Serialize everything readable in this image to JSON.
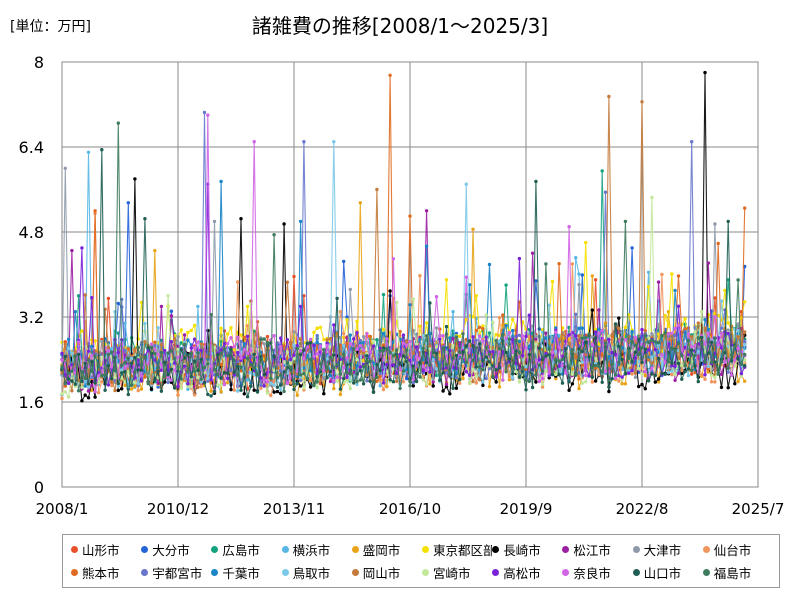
{
  "chart_data": {
    "type": "line",
    "title": "諸雑費の推移[2008/1～2025/3]",
    "unit_label": "[単位：万円]",
    "xlabel": "",
    "ylabel": "",
    "x_range": [
      "2008/1",
      "2025/3"
    ],
    "x_ticks": [
      "2008/1",
      "2010/12",
      "2013/11",
      "2016/10",
      "2019/9",
      "2022/8",
      "2025/7"
    ],
    "y_ticks": [
      "0",
      "1.6",
      "3.2",
      "4.8",
      "6.4",
      "8"
    ],
    "ylim": [
      0,
      8
    ],
    "grid": true,
    "legend_position": "bottom",
    "series": [
      {
        "name": "山形市",
        "color": "#e8502a",
        "base": 2.25,
        "peaks": [
          [
            "2009/3",
            3.55
          ],
          [
            "2014/2",
            3.6
          ],
          [
            "2021/6",
            3.9
          ],
          [
            "2025/2",
            3.3
          ]
        ]
      },
      {
        "name": "大分市",
        "color": "#2563d9",
        "base": 2.3,
        "peaks": [
          [
            "2009/9",
            5.35
          ],
          [
            "2016/4",
            3.6
          ],
          [
            "2022/5",
            4.5
          ],
          [
            "2025/3",
            4.15
          ]
        ]
      },
      {
        "name": "広島市",
        "color": "#14a37f",
        "base": 2.35,
        "peaks": [
          [
            "2008/6",
            3.6
          ],
          [
            "2019/3",
            3.8
          ],
          [
            "2021/8",
            5.95
          ],
          [
            "2024/10",
            3.9
          ]
        ]
      },
      {
        "name": "横浜市",
        "color": "#58b7e5",
        "base": 2.2,
        "peaks": [
          [
            "2008/9",
            6.3
          ],
          [
            "2011/6",
            3.4
          ],
          [
            "2017/11",
            3.3
          ],
          [
            "2023/1",
            3.5
          ]
        ]
      },
      {
        "name": "盛岡市",
        "color": "#e8a317",
        "base": 2.1,
        "peaks": [
          [
            "2010/5",
            4.45
          ],
          [
            "2015/7",
            5.35
          ],
          [
            "2018/5",
            4.85
          ],
          [
            "2023/4",
            3.3
          ]
        ]
      },
      {
        "name": "東京都区部",
        "color": "#f5e000",
        "base": 2.55,
        "peaks": [
          [
            "2012/9",
            3.4
          ],
          [
            "2017/9",
            3.9
          ],
          [
            "2021/3",
            4.6
          ],
          [
            "2024/9",
            3.7
          ]
        ]
      },
      {
        "name": "長崎市",
        "color": "#000000",
        "base": 2.05,
        "peaks": [
          [
            "2009/11",
            5.8
          ],
          [
            "2012/7",
            5.05
          ],
          [
            "2013/8",
            4.95
          ],
          [
            "2024/3",
            7.8
          ]
        ]
      },
      {
        "name": "松江市",
        "color": "#9b1fa3",
        "base": 2.2,
        "peaks": [
          [
            "2008/4",
            4.45
          ],
          [
            "2010/7",
            3.4
          ],
          [
            "2017/3",
            5.2
          ],
          [
            "2019/11",
            4.4
          ]
        ]
      },
      {
        "name": "大津市",
        "color": "#8e9aab",
        "base": 2.3,
        "peaks": [
          [
            "2008/2",
            6.0
          ],
          [
            "2011/11",
            5.0
          ],
          [
            "2014/10",
            3.2
          ],
          [
            "2024/6",
            4.95
          ]
        ]
      },
      {
        "name": "仙台市",
        "color": "#f0965c",
        "base": 2.1,
        "peaks": [
          [
            "2008/11",
            5.15
          ],
          [
            "2015/1",
            3.3
          ],
          [
            "2020/11",
            4.2
          ],
          [
            "2023/2",
            4.0
          ]
        ]
      },
      {
        "name": "熊本市",
        "color": "#e06a20",
        "base": 2.3,
        "peaks": [
          [
            "2008/11",
            5.2
          ],
          [
            "2016/4",
            7.75
          ],
          [
            "2016/10",
            5.1
          ],
          [
            "2025/3",
            5.25
          ]
        ]
      },
      {
        "name": "宇都宮市",
        "color": "#6877cc",
        "base": 2.25,
        "peaks": [
          [
            "2011/8",
            7.05
          ],
          [
            "2014/2",
            6.5
          ],
          [
            "2021/9",
            5.55
          ],
          [
            "2023/11",
            6.5
          ]
        ]
      },
      {
        "name": "千葉市",
        "color": "#1a85c7",
        "base": 2.35,
        "peaks": [
          [
            "2008/5",
            3.3
          ],
          [
            "2012/1",
            5.75
          ],
          [
            "2014/1",
            5.0
          ],
          [
            "2023/6",
            3.7
          ]
        ]
      },
      {
        "name": "鳥取市",
        "color": "#7cc8e8",
        "base": 2.2,
        "peaks": [
          [
            "2009/5",
            3.3
          ],
          [
            "2014/11",
            6.5
          ],
          [
            "2018/3",
            5.7
          ],
          [
            "2024/8",
            3.5
          ]
        ]
      },
      {
        "name": "岡山市",
        "color": "#c47a3a",
        "base": 2.3,
        "peaks": [
          [
            "2012/10",
            3.5
          ],
          [
            "2015/12",
            5.6
          ],
          [
            "2021/10",
            7.35
          ],
          [
            "2022/8",
            7.25
          ]
        ]
      },
      {
        "name": "宮崎市",
        "color": "#c2e89a",
        "base": 2.15,
        "peaks": [
          [
            "2010/9",
            3.6
          ],
          [
            "2018/11",
            3.1
          ],
          [
            "2022/11",
            5.45
          ],
          [
            "2024/2",
            3.3
          ]
        ]
      },
      {
        "name": "高松市",
        "color": "#7a22d8",
        "base": 2.3,
        "peaks": [
          [
            "2008/7",
            4.5
          ],
          [
            "2011/9",
            5.7
          ],
          [
            "2014/1",
            3.4
          ],
          [
            "2019/7",
            4.3
          ]
        ]
      },
      {
        "name": "奈良市",
        "color": "#d264e6",
        "base": 2.25,
        "peaks": [
          [
            "2011/9",
            7.0
          ],
          [
            "2012/11",
            6.5
          ],
          [
            "2020/10",
            4.9
          ],
          [
            "2024/6",
            3.2
          ]
        ]
      },
      {
        "name": "山口市",
        "color": "#1f5e52",
        "base": 2.1,
        "peaks": [
          [
            "2009/1",
            6.35
          ],
          [
            "2010/2",
            5.05
          ],
          [
            "2019/12",
            5.75
          ],
          [
            "2024/10",
            5.0
          ]
        ]
      },
      {
        "name": "福島市",
        "color": "#3d7a5e",
        "base": 2.2,
        "peaks": [
          [
            "2009/6",
            6.85
          ],
          [
            "2013/5",
            4.75
          ],
          [
            "2020/3",
            4.2
          ],
          [
            "2022/3",
            5.0
          ]
        ]
      }
    ]
  }
}
